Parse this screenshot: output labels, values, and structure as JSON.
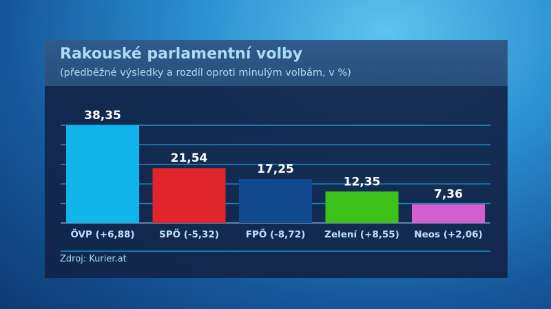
{
  "chart_data": {
    "type": "bar",
    "title": "Rakouské parlamentní volby",
    "subtitle": "(předběžné výsledky a rozdíl oproti minulým volbám, v %)",
    "categories": [
      "ÖVP (+6,88)",
      "SPÖ (-5,32)",
      "FPÖ  (-8,72)",
      "Zelení  (+8,55)",
      "Neos (+2,06)"
    ],
    "values": [
      38.35,
      21.54,
      17.25,
      12.35,
      7.36
    ],
    "value_labels": [
      "38,35",
      "21,54",
      "17,25",
      "12,35",
      "7,36"
    ],
    "colors": [
      "#12b4ec",
      "#e0262c",
      "#114a8e",
      "#3cc11a",
      "#d35fd0"
    ],
    "ylim": [
      0,
      38.35
    ],
    "grid": true,
    "source": "Zdroj: Kurier.at"
  }
}
